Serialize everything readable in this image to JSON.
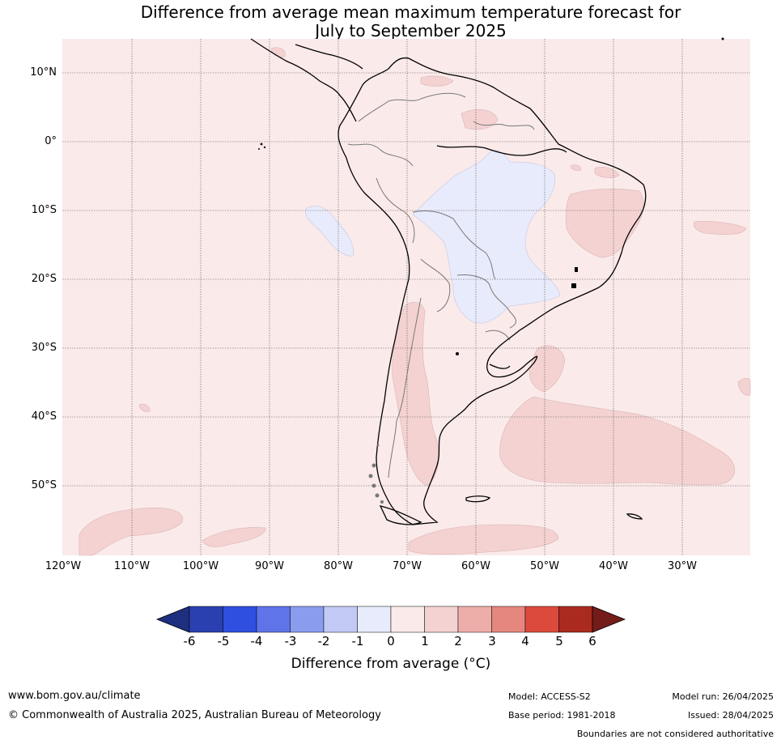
{
  "title_line1": "Difference from average mean maximum temperature forecast for",
  "title_line2": "July to September 2025",
  "lat_labels": [
    "10°N",
    "0°",
    "10°S",
    "20°S",
    "30°S",
    "40°S",
    "50°S"
  ],
  "lon_labels": [
    "120°W",
    "110°W",
    "100°W",
    "90°W",
    "80°W",
    "70°W",
    "60°W",
    "50°W",
    "40°W",
    "30°W"
  ],
  "colorbar": {
    "ticks": [
      "-6",
      "-5",
      "-4",
      "-3",
      "-2",
      "-1",
      "0",
      "1",
      "2",
      "3",
      "4",
      "5",
      "6"
    ],
    "title": "Difference from average (°C)",
    "colors": [
      "#1f2f80",
      "#2a40b0",
      "#2f4fe0",
      "#5f74e8",
      "#8a9cee",
      "#c2c9f4",
      "#e8ebfb",
      "#fbeaea",
      "#f4d2d2",
      "#edaeaa",
      "#e6877f",
      "#dc4a3c",
      "#ab2a1f",
      "#741c1a"
    ]
  },
  "footer": {
    "url": "www.bom.gov.au/climate",
    "copyright": "© Commonwealth of Australia 2025, Australian Bureau of Meteorology",
    "model": "Model: ACCESS-S2",
    "base_period": "Base period: 1981-2018",
    "model_run": "Model run: 26/04/2025",
    "issued": "Issued: 28/04/2025",
    "boundaries": "Boundaries are not considered authoritative"
  }
}
